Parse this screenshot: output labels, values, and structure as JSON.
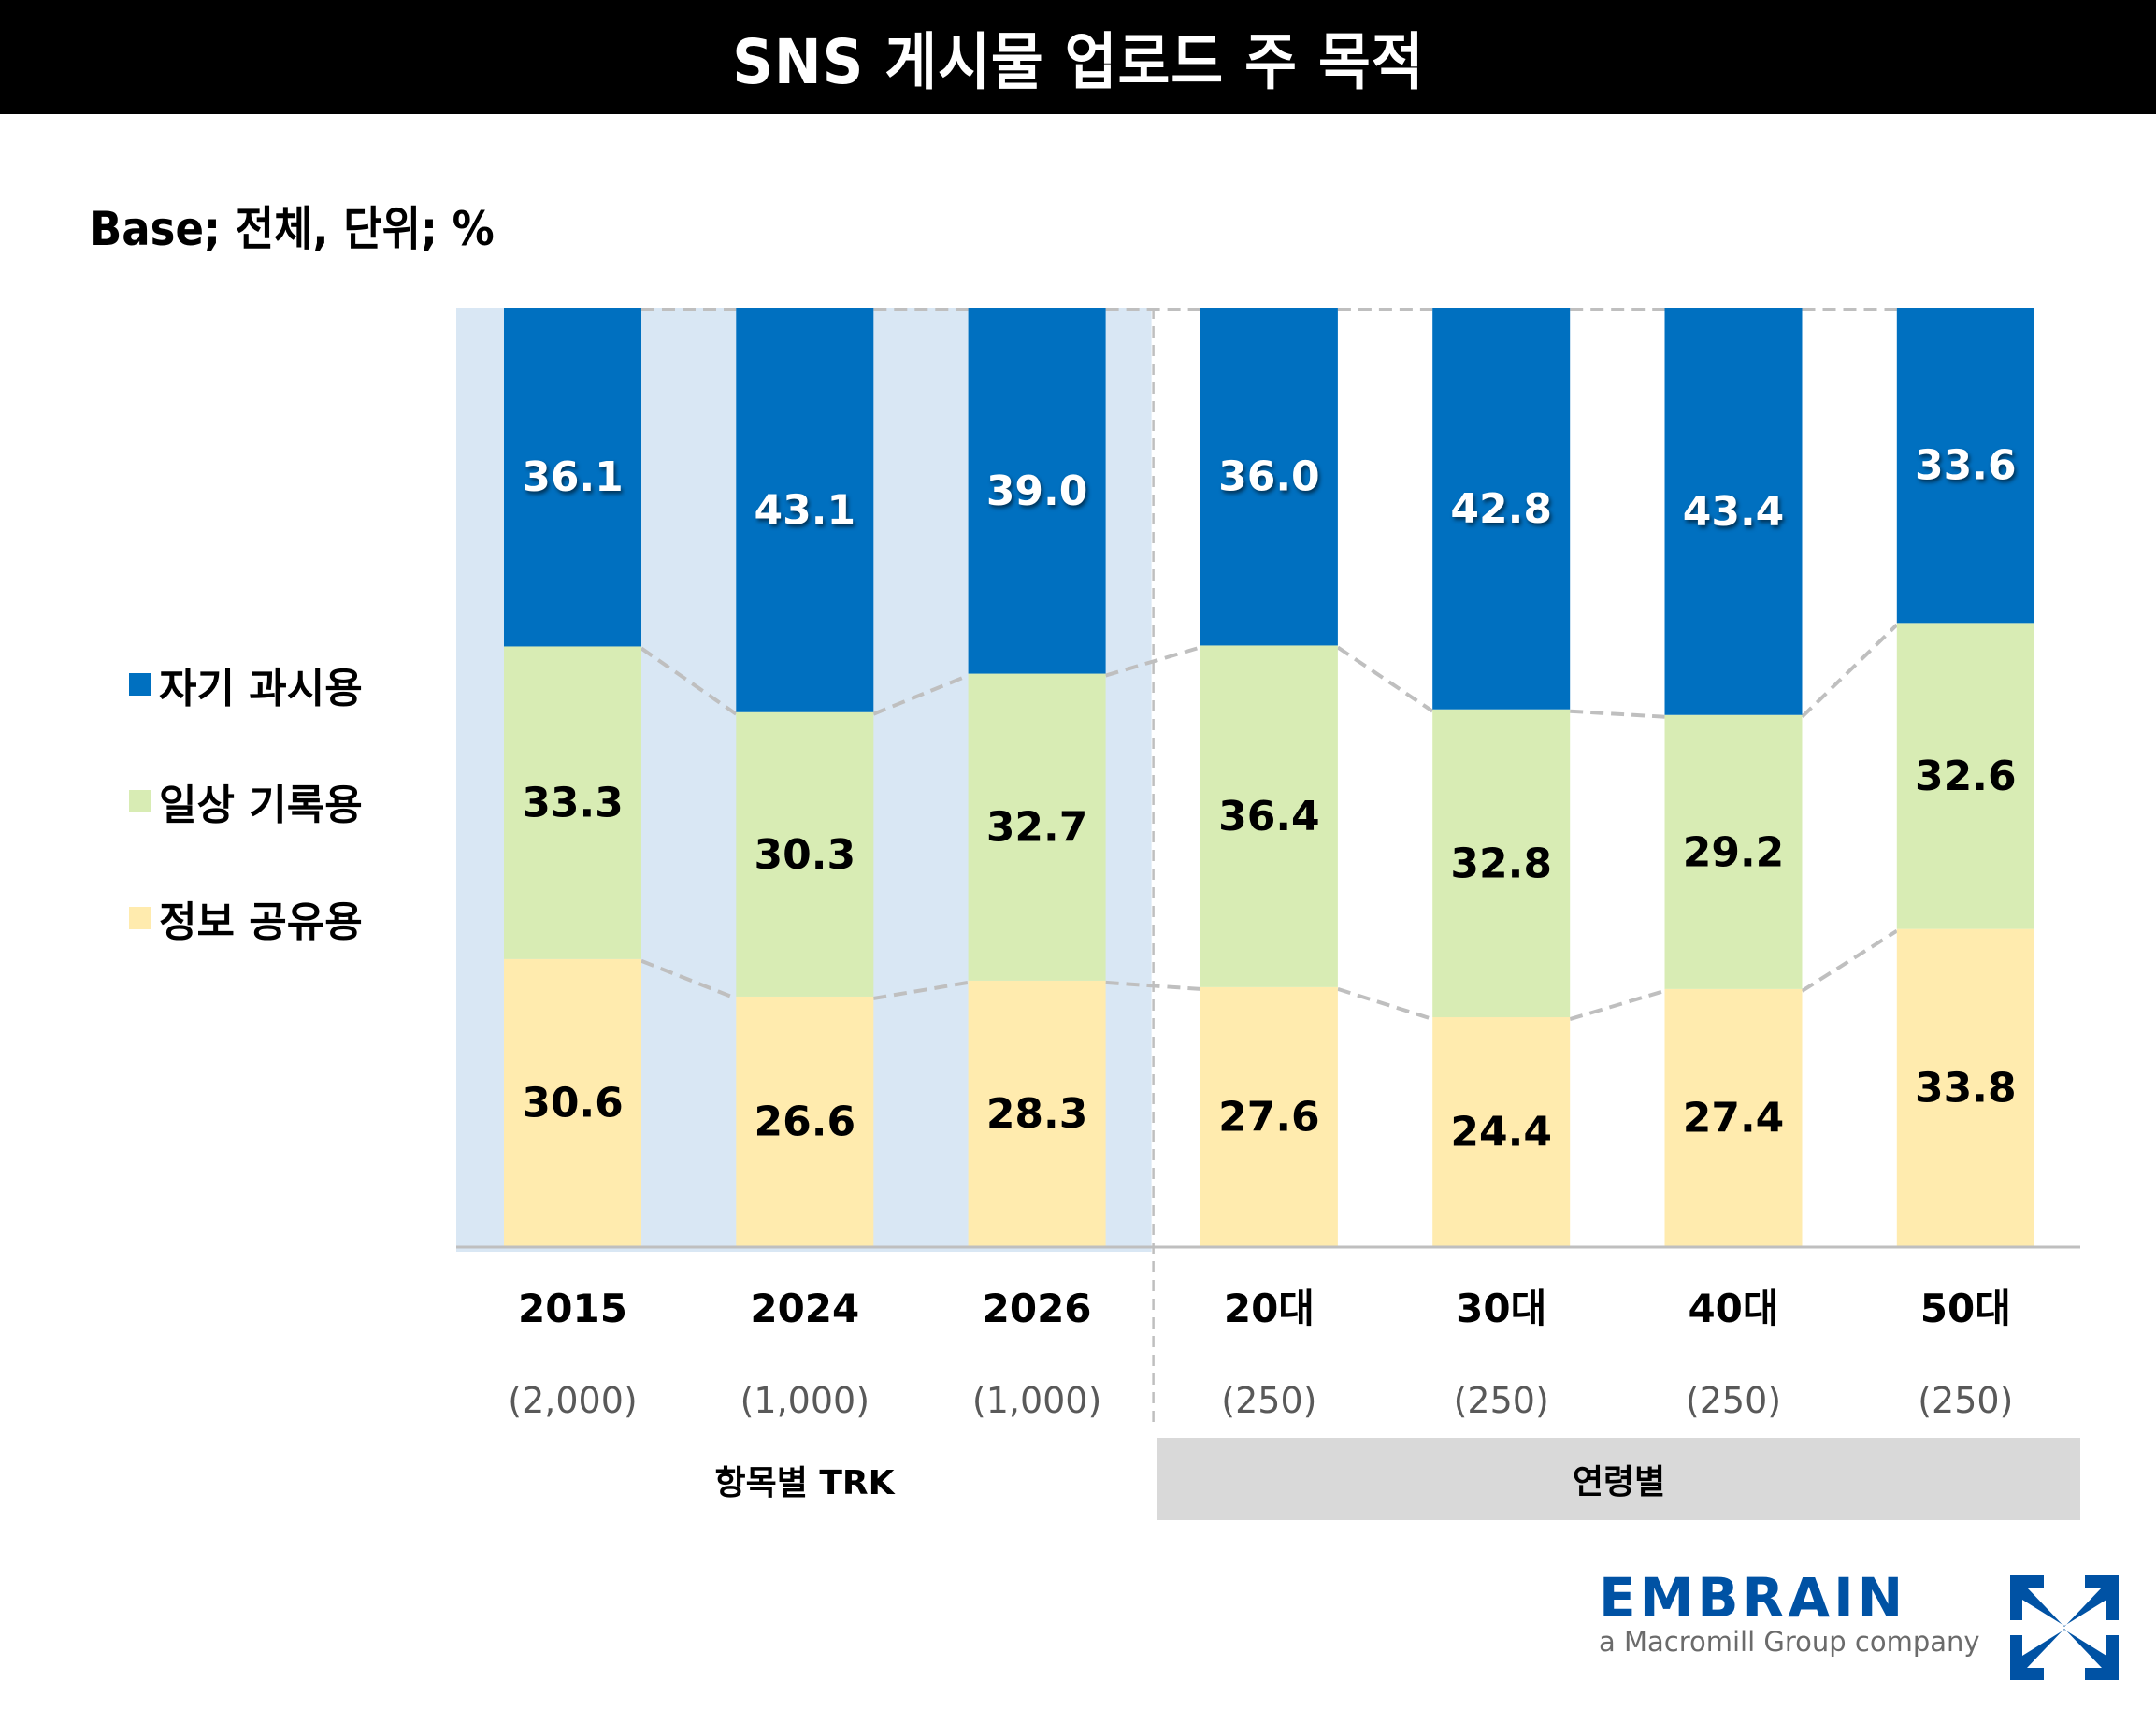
{
  "header": {
    "title": "SNS 게시물 업로드 주 목적",
    "base_note": "Base; 전체, 단위; %"
  },
  "legend": [
    {
      "label": "자기 과시용",
      "color": "#0070c0"
    },
    {
      "label": "일상 기록용",
      "color": "#d8ecb4"
    },
    {
      "label": "정보 공유용",
      "color": "#ffebae"
    }
  ],
  "groups": {
    "trk_label": "항목별 TRK",
    "age_label": "연령별"
  },
  "brand": {
    "wordmark": "EMBRAIN",
    "tagline": "a Macromill Group company",
    "color": "#0052a4"
  },
  "chart_data": {
    "type": "bar",
    "stacked": true,
    "orientation": "vertical",
    "title": "SNS 게시물 업로드 주 목적",
    "xlabel": "",
    "ylabel": "%",
    "ylim": [
      0,
      100
    ],
    "grid": false,
    "legend_position": "left",
    "categories": [
      "2015",
      "2024",
      "2026",
      "20대",
      "30대",
      "40대",
      "50대"
    ],
    "sample_sizes": [
      "(2,000)",
      "(1,000)",
      "(1,000)",
      "(250)",
      "(250)",
      "(250)",
      "(250)"
    ],
    "category_groups": [
      {
        "label": "항목별 TRK",
        "categories": [
          "2015",
          "2024",
          "2026"
        ],
        "highlight_color": "#d9e7f4"
      },
      {
        "label": "연령별",
        "categories": [
          "20대",
          "30대",
          "40대",
          "50대"
        ]
      }
    ],
    "series": [
      {
        "name": "정보 공유용",
        "color": "#ffebae",
        "label_color": "#000000",
        "values": [
          30.6,
          26.6,
          28.3,
          27.6,
          24.4,
          27.4,
          33.8
        ]
      },
      {
        "name": "일상 기록용",
        "color": "#d8ecb4",
        "label_color": "#000000",
        "values": [
          33.3,
          30.3,
          32.7,
          36.4,
          32.8,
          29.2,
          32.6
        ]
      },
      {
        "name": "자기 과시용",
        "color": "#0070c0",
        "label_color": "#ffffff",
        "values": [
          36.1,
          43.1,
          39.0,
          36.0,
          42.8,
          43.4,
          33.6
        ]
      }
    ],
    "connector_lines": "dashed"
  }
}
